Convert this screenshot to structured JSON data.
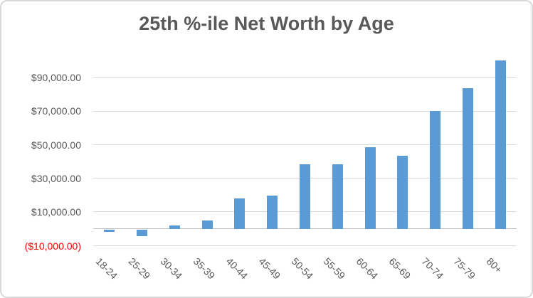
{
  "chart_data": {
    "type": "bar",
    "title": "25th %-ile Net Worth by Age",
    "categories": [
      "18-24",
      "25-29",
      "30-34",
      "35-39",
      "40-44",
      "45-49",
      "50-54",
      "55-59",
      "60-64",
      "65-69",
      "70-74",
      "75-79",
      "80+"
    ],
    "values": [
      -1800,
      -4500,
      2200,
      4900,
      18100,
      19700,
      38400,
      38400,
      48600,
      43600,
      70000,
      83500,
      100000
    ],
    "xlabel": "",
    "ylabel": "",
    "ylim": [
      -10000,
      101400
    ],
    "grid": true,
    "legend": false,
    "x_tick_rotation": 45,
    "yticks": [
      {
        "value": 90000,
        "label": "$90,000.00",
        "negative": false
      },
      {
        "value": 70000,
        "label": "$70,000.00",
        "negative": false
      },
      {
        "value": 50000,
        "label": "$50,000.00",
        "negative": false
      },
      {
        "value": 30000,
        "label": "$30,000.00",
        "negative": false
      },
      {
        "value": 10000,
        "label": "$10,000.00",
        "negative": false
      },
      {
        "value": -10000,
        "label": "($10,000.00)",
        "negative": true
      }
    ],
    "colors": {
      "bar": "#5b9bd5",
      "gridline": "#d9d9d9",
      "zero_line": "#bfbfbf",
      "axis_label": "#595959",
      "negative_label": "#ff0000",
      "title": "#595959",
      "border": "#d9d9d9",
      "background": "#ffffff"
    }
  }
}
